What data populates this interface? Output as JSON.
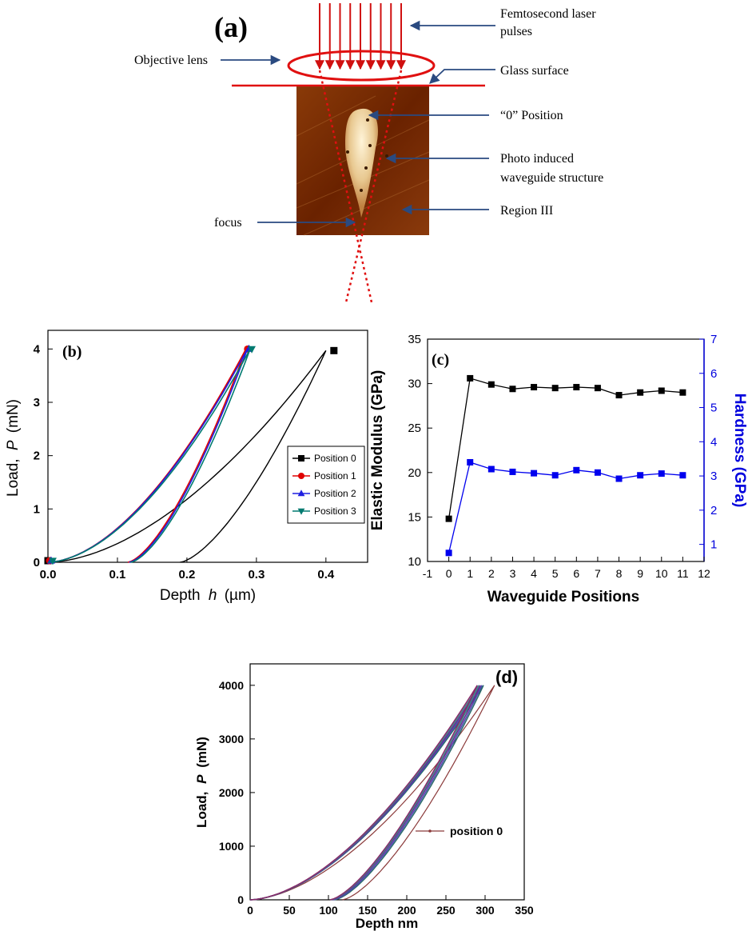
{
  "panel_a": {
    "label": "(a)",
    "annotations": {
      "laser": [
        "Femtosecond laser",
        "pulses"
      ],
      "objective": "Objective lens",
      "glass": "Glass surface",
      "zero": "“0” Position",
      "waveguide": [
        "Photo induced",
        "waveguide structure"
      ],
      "region": "Region III",
      "focus": "focus"
    },
    "colors": {
      "laser": "#d01010",
      "arrow": "#2a4a80"
    }
  },
  "chart_data": [
    {
      "id": "b",
      "type": "line",
      "panel_label": "(b)",
      "xlabel": "Depth",
      "xlabel_var": "h",
      "xlabel_unit": "(µm)",
      "ylabel": "Load,",
      "ylabel_var": "P",
      "ylabel_unit": "(mN)",
      "xlim": [
        0,
        0.46
      ],
      "ylim": [
        0,
        4.35
      ],
      "xticks": [
        "0.0",
        "0.1",
        "0.2",
        "0.3",
        "0.4"
      ],
      "xtick_values": [
        0,
        0.1,
        0.2,
        0.3,
        0.4
      ],
      "yticks": [
        "0",
        "1",
        "2",
        "3",
        "4"
      ],
      "ytick_values": [
        0,
        1,
        2,
        3,
        4
      ],
      "legend_position": "bottom-right",
      "series": [
        {
          "name": "Position 0",
          "color": "#000000",
          "marker": "square",
          "hmax": 0.4,
          "hstart": 0.0,
          "hfinal": 0.19,
          "kink": 0.1,
          "pmax": 3.97
        },
        {
          "name": "Position 1",
          "color": "#e00000",
          "marker": "circle",
          "hmax": 0.285,
          "hstart": 0.0,
          "hfinal": 0.115,
          "pmax": 4.0
        },
        {
          "name": "Position 2",
          "color": "#1f1fe0",
          "marker": "triangle-up",
          "hmax": 0.287,
          "hstart": 0.0,
          "hfinal": 0.117,
          "pmax": 4.0
        },
        {
          "name": "Position 3",
          "color": "#007a70",
          "marker": "triangle-down",
          "hmax": 0.291,
          "hstart": 0.0,
          "hfinal": 0.119,
          "pmax": 4.0
        }
      ]
    },
    {
      "id": "c",
      "type": "line",
      "panel_label": "(c)",
      "xlabel": "Waveguide Positions",
      "ylabel_left": "Elastic Modulus (GPa)",
      "ylabel_right": "Hardness (GPa)",
      "xlim": [
        -1,
        12
      ],
      "ylim_left": [
        10,
        35
      ],
      "ylim_right": [
        0.5,
        7
      ],
      "xticks": [
        "-1",
        "0",
        "1",
        "2",
        "3",
        "4",
        "5",
        "6",
        "7",
        "8",
        "9",
        "10",
        "11",
        "12"
      ],
      "yticks_left": [
        "10",
        "15",
        "20",
        "25",
        "30",
        "35"
      ],
      "yticks_right": [
        "1",
        "2",
        "3",
        "4",
        "5",
        "6",
        "7"
      ],
      "x": [
        0,
        1,
        2,
        3,
        4,
        5,
        6,
        7,
        8,
        9,
        10,
        11
      ],
      "series": [
        {
          "name": "Elastic Modulus",
          "axis": "left",
          "color": "#000000",
          "marker": "square",
          "values": [
            14.8,
            30.6,
            29.9,
            29.4,
            29.6,
            29.5,
            29.6,
            29.5,
            28.7,
            29.0,
            29.2,
            29.0
          ]
        },
        {
          "name": "Hardness",
          "axis": "right",
          "color": "#0000ee",
          "marker": "square",
          "values": [
            0.75,
            3.4,
            3.2,
            3.12,
            3.08,
            3.02,
            3.17,
            3.1,
            2.92,
            3.02,
            3.07,
            3.02
          ]
        }
      ],
      "colors": {
        "right_axis": "#0000dd"
      }
    },
    {
      "id": "d",
      "type": "line",
      "panel_label": "(d)",
      "xlabel": "Depth nm",
      "ylabel": "Load,",
      "ylabel_var": "P",
      "ylabel_unit": "(mN)",
      "xlim": [
        0,
        350
      ],
      "ylim": [
        0,
        4400
      ],
      "xticks": [
        "0",
        "50",
        "100",
        "150",
        "200",
        "250",
        "300",
        "350"
      ],
      "xtick_values": [
        0,
        50,
        100,
        150,
        200,
        250,
        300,
        350
      ],
      "yticks": [
        "0",
        "1000",
        "2000",
        "3000",
        "4000"
      ],
      "ytick_values": [
        0,
        1000,
        2000,
        3000,
        4000
      ],
      "legend_position": "bottom-right",
      "legend_entry": "position 0",
      "series": [
        {
          "name": "position 0",
          "color": "#8b3a3a",
          "hmax": 312,
          "hfinal": 118,
          "pmax": 4000
        },
        {
          "color": "#2a6a6a",
          "hmax": 298,
          "hfinal": 108,
          "pmax": 4000
        },
        {
          "color": "#4a4ab0",
          "hmax": 296,
          "hfinal": 106,
          "pmax": 4000
        },
        {
          "color": "#6a2a8a",
          "hmax": 294,
          "hfinal": 104,
          "pmax": 4000
        },
        {
          "color": "#3a8a8a",
          "hmax": 292,
          "hfinal": 103,
          "pmax": 4000
        },
        {
          "color": "#8a2a6a",
          "hmax": 290,
          "hfinal": 102,
          "pmax": 4000
        }
      ]
    }
  ]
}
